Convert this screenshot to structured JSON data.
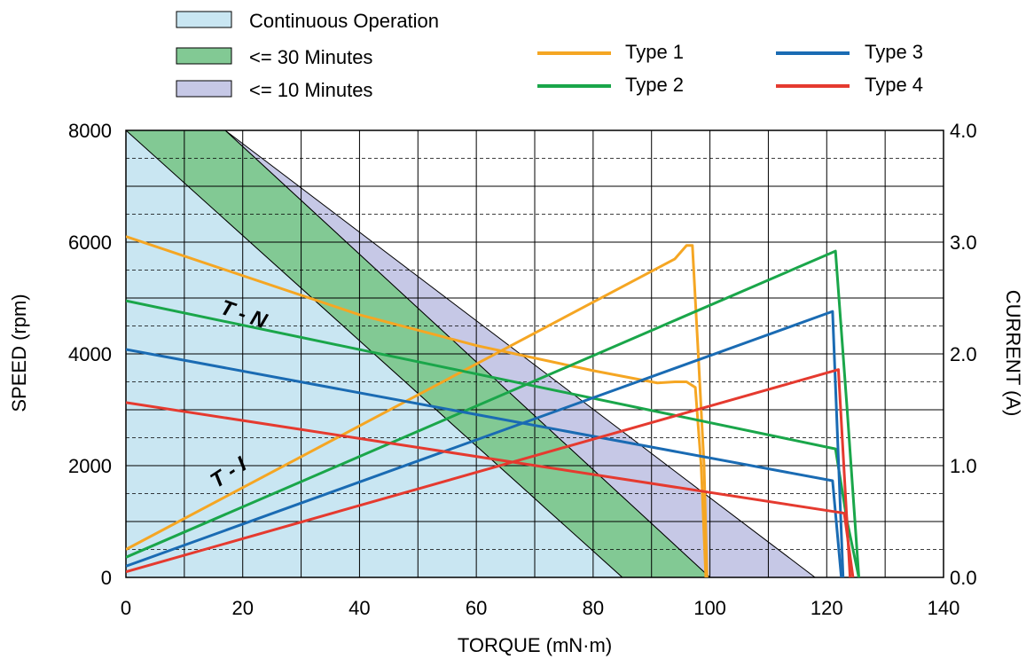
{
  "chart_data": {
    "type": "line",
    "xlabel": "TORQUE (mN·m)",
    "ylabel": "SPEED (rpm)",
    "y2label": "CURRENT (A)",
    "xlim": [
      0,
      140
    ],
    "ylim": [
      0,
      8000
    ],
    "y2lim": [
      0,
      4
    ],
    "x_ticks": [
      "0",
      "20",
      "40",
      "60",
      "80",
      "100",
      "120",
      "140"
    ],
    "y_ticks": [
      "0",
      "2000",
      "4000",
      "6000",
      "8000"
    ],
    "y2_ticks": [
      "0.0",
      "1.0",
      "2.0",
      "3.0",
      "4.0"
    ],
    "grid": true,
    "legend_position": "top",
    "regions": [
      {
        "name": "Continuous Operation",
        "color": "#c9e6f2",
        "boundary": [
          [
            0,
            8000
          ],
          [
            85,
            0
          ]
        ]
      },
      {
        "name": "<= 30 Minutes",
        "color": "#82c994",
        "boundary": [
          [
            0,
            8000
          ],
          [
            100,
            0
          ]
        ]
      },
      {
        "name": "<= 10 Minutes",
        "color": "#c6c8e6",
        "boundary": [
          [
            17,
            8000
          ],
          [
            118,
            0
          ]
        ]
      }
    ],
    "curve_labels": {
      "tn": "T - N",
      "ti": "T - I"
    },
    "series": [
      {
        "name": "Type 1",
        "color": "#f5a623",
        "speed": [
          [
            0,
            6100
          ],
          [
            40,
            4700
          ],
          [
            60,
            4150
          ],
          [
            80,
            3700
          ],
          [
            91,
            3480
          ],
          [
            94,
            3500
          ],
          [
            96,
            3500
          ],
          [
            97.5,
            3400
          ],
          [
            98.5,
            2000
          ],
          [
            99.3,
            0
          ]
        ],
        "current": [
          [
            0,
            0.25
          ],
          [
            94,
            2.85
          ],
          [
            96,
            2.97
          ],
          [
            97,
            2.97
          ],
          [
            98,
            2.0
          ],
          [
            99,
            1.0
          ],
          [
            99.5,
            0.0
          ]
        ]
      },
      {
        "name": "Type 2",
        "color": "#1aa64a",
        "speed": [
          [
            0,
            4950
          ],
          [
            121.5,
            2300
          ],
          [
            123.5,
            1000
          ],
          [
            125.5,
            0
          ]
        ],
        "current": [
          [
            0,
            0.18
          ],
          [
            121.5,
            2.92
          ],
          [
            123.5,
            1.5
          ],
          [
            125.5,
            0.0
          ]
        ]
      },
      {
        "name": "Type 3",
        "color": "#1a6bb3",
        "speed": [
          [
            0,
            4080
          ],
          [
            121,
            1730
          ],
          [
            122.5,
            0
          ]
        ],
        "current": [
          [
            0,
            0.1
          ],
          [
            121,
            2.38
          ],
          [
            122.8,
            0.0
          ]
        ]
      },
      {
        "name": "Type 4",
        "color": "#e53a2f",
        "speed": [
          [
            0,
            3130
          ],
          [
            123,
            1150
          ],
          [
            124.5,
            0
          ]
        ],
        "current": [
          [
            0,
            0.05
          ],
          [
            122,
            1.86
          ],
          [
            124,
            0.0
          ]
        ]
      }
    ]
  }
}
